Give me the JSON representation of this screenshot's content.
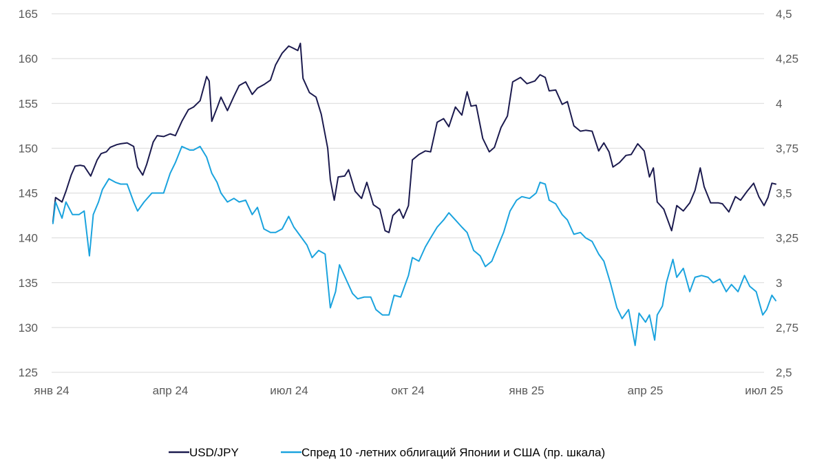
{
  "chart_data": {
    "type": "line",
    "title": "",
    "xlabel": "",
    "ylabel": "",
    "x_ticks": [
      "янв 24",
      "апр 24",
      "июл 24",
      "окт 24",
      "янв 25",
      "апр 25",
      "июл 25"
    ],
    "x_range": [
      "янв 24",
      "июл 25"
    ],
    "left_axis": {
      "ylim": [
        125,
        165
      ],
      "ticks": [
        "125",
        "130",
        "135",
        "140",
        "145",
        "150",
        "155",
        "160",
        "165"
      ]
    },
    "right_axis": {
      "ylim": [
        2.5,
        4.5
      ],
      "ticks": [
        "2,5",
        "2,75",
        "3",
        "3,25",
        "3,5",
        "3,75",
        "4",
        "4,25",
        "4,5"
      ]
    },
    "grid": true,
    "legend_position": "bottom",
    "series": [
      {
        "name": "USD/JPY",
        "axis": "left",
        "color": "#1b1a4e",
        "points": [
          [
            "2024-01-02",
            141.8
          ],
          [
            "2024-01-04",
            144.5
          ],
          [
            "2024-01-09",
            144.0
          ],
          [
            "2024-01-12",
            145.2
          ],
          [
            "2024-01-16",
            147.0
          ],
          [
            "2024-01-19",
            148.0
          ],
          [
            "2024-01-23",
            148.1
          ],
          [
            "2024-01-26",
            148.0
          ],
          [
            "2024-01-31",
            146.9
          ],
          [
            "2024-02-05",
            148.7
          ],
          [
            "2024-02-08",
            149.4
          ],
          [
            "2024-02-12",
            149.6
          ],
          [
            "2024-02-15",
            150.1
          ],
          [
            "2024-02-20",
            150.4
          ],
          [
            "2024-02-23",
            150.5
          ],
          [
            "2024-02-28",
            150.6
          ],
          [
            "2024-03-04",
            150.2
          ],
          [
            "2024-03-07",
            147.9
          ],
          [
            "2024-03-11",
            147.0
          ],
          [
            "2024-03-14",
            148.2
          ],
          [
            "2024-03-19",
            150.7
          ],
          [
            "2024-03-22",
            151.4
          ],
          [
            "2024-03-27",
            151.3
          ],
          [
            "2024-04-01",
            151.6
          ],
          [
            "2024-04-05",
            151.4
          ],
          [
            "2024-04-10",
            153.0
          ],
          [
            "2024-04-15",
            154.3
          ],
          [
            "2024-04-19",
            154.6
          ],
          [
            "2024-04-24",
            155.3
          ],
          [
            "2024-04-29",
            158.0
          ],
          [
            "2024-05-01",
            157.5
          ],
          [
            "2024-05-03",
            153.0
          ],
          [
            "2024-05-07",
            154.5
          ],
          [
            "2024-05-10",
            155.7
          ],
          [
            "2024-05-15",
            154.2
          ],
          [
            "2024-05-20",
            155.8
          ],
          [
            "2024-05-24",
            157.0
          ],
          [
            "2024-05-29",
            157.4
          ],
          [
            "2024-06-03",
            156.0
          ],
          [
            "2024-06-07",
            156.7
          ],
          [
            "2024-06-12",
            157.1
          ],
          [
            "2024-06-17",
            157.6
          ],
          [
            "2024-06-21",
            159.3
          ],
          [
            "2024-06-26",
            160.6
          ],
          [
            "2024-07-01",
            161.4
          ],
          [
            "2024-07-04",
            161.2
          ],
          [
            "2024-07-08",
            160.9
          ],
          [
            "2024-07-10",
            161.7
          ],
          [
            "2024-07-12",
            157.8
          ],
          [
            "2024-07-17",
            156.2
          ],
          [
            "2024-07-22",
            155.7
          ],
          [
            "2024-07-26",
            153.8
          ],
          [
            "2024-07-31",
            150.0
          ],
          [
            "2024-08-02",
            146.5
          ],
          [
            "2024-08-05",
            144.2
          ],
          [
            "2024-08-08",
            146.8
          ],
          [
            "2024-08-13",
            146.9
          ],
          [
            "2024-08-16",
            147.6
          ],
          [
            "2024-08-21",
            145.2
          ],
          [
            "2024-08-26",
            144.4
          ],
          [
            "2024-08-30",
            146.2
          ],
          [
            "2024-09-04",
            143.7
          ],
          [
            "2024-09-09",
            143.2
          ],
          [
            "2024-09-13",
            140.8
          ],
          [
            "2024-09-16",
            140.6
          ],
          [
            "2024-09-19",
            142.5
          ],
          [
            "2024-09-24",
            143.2
          ],
          [
            "2024-09-27",
            142.2
          ],
          [
            "2024-10-01",
            143.6
          ],
          [
            "2024-10-04",
            148.7
          ],
          [
            "2024-10-09",
            149.3
          ],
          [
            "2024-10-14",
            149.7
          ],
          [
            "2024-10-18",
            149.6
          ],
          [
            "2024-10-23",
            152.9
          ],
          [
            "2024-10-28",
            153.3
          ],
          [
            "2024-11-01",
            152.4
          ],
          [
            "2024-11-06",
            154.6
          ],
          [
            "2024-11-11",
            153.7
          ],
          [
            "2024-11-15",
            156.3
          ],
          [
            "2024-11-18",
            154.7
          ],
          [
            "2024-11-22",
            154.8
          ],
          [
            "2024-11-27",
            151.1
          ],
          [
            "2024-12-02",
            149.6
          ],
          [
            "2024-12-06",
            150.1
          ],
          [
            "2024-12-11",
            152.3
          ],
          [
            "2024-12-16",
            153.6
          ],
          [
            "2024-12-20",
            157.4
          ],
          [
            "2024-12-26",
            157.9
          ],
          [
            "2024-12-31",
            157.2
          ],
          [
            "2025-01-06",
            157.5
          ],
          [
            "2025-01-10",
            158.2
          ],
          [
            "2025-01-14",
            157.9
          ],
          [
            "2025-01-17",
            156.4
          ],
          [
            "2025-01-22",
            156.5
          ],
          [
            "2025-01-27",
            154.9
          ],
          [
            "2025-01-31",
            155.2
          ],
          [
            "2025-02-05",
            152.5
          ],
          [
            "2025-02-10",
            151.9
          ],
          [
            "2025-02-14",
            152.0
          ],
          [
            "2025-02-19",
            151.9
          ],
          [
            "2025-02-24",
            149.7
          ],
          [
            "2025-02-28",
            150.6
          ],
          [
            "2025-03-04",
            149.6
          ],
          [
            "2025-03-07",
            147.9
          ],
          [
            "2025-03-12",
            148.4
          ],
          [
            "2025-03-17",
            149.2
          ],
          [
            "2025-03-21",
            149.3
          ],
          [
            "2025-03-26",
            150.5
          ],
          [
            "2025-03-31",
            149.7
          ],
          [
            "2025-04-04",
            146.8
          ],
          [
            "2025-04-07",
            147.8
          ],
          [
            "2025-04-10",
            144.0
          ],
          [
            "2025-04-15",
            143.2
          ],
          [
            "2025-04-21",
            140.8
          ],
          [
            "2025-04-25",
            143.6
          ],
          [
            "2025-04-30",
            143.0
          ],
          [
            "2025-05-05",
            143.9
          ],
          [
            "2025-05-09",
            145.3
          ],
          [
            "2025-05-13",
            147.8
          ],
          [
            "2025-05-16",
            145.7
          ],
          [
            "2025-05-21",
            143.9
          ],
          [
            "2025-05-27",
            143.9
          ],
          [
            "2025-05-30",
            143.8
          ],
          [
            "2025-06-04",
            142.9
          ],
          [
            "2025-06-09",
            144.6
          ],
          [
            "2025-06-13",
            144.2
          ],
          [
            "2025-06-18",
            145.2
          ],
          [
            "2025-06-23",
            146.1
          ],
          [
            "2025-06-27",
            144.6
          ],
          [
            "2025-07-01",
            143.6
          ],
          [
            "2025-07-04",
            144.5
          ],
          [
            "2025-07-07",
            146.1
          ],
          [
            "2025-07-10",
            146.0
          ]
        ]
      },
      {
        "name": "Спред 10 -летних облигаций Японии и США (пр. шкала)",
        "axis": "right",
        "color": "#1aa3de",
        "points": [
          [
            "2024-01-02",
            3.33
          ],
          [
            "2024-01-04",
            3.45
          ],
          [
            "2024-01-09",
            3.36
          ],
          [
            "2024-01-12",
            3.45
          ],
          [
            "2024-01-17",
            3.38
          ],
          [
            "2024-01-22",
            3.38
          ],
          [
            "2024-01-26",
            3.4
          ],
          [
            "2024-01-30",
            3.15
          ],
          [
            "2024-02-02",
            3.38
          ],
          [
            "2024-02-06",
            3.45
          ],
          [
            "2024-02-09",
            3.52
          ],
          [
            "2024-02-14",
            3.58
          ],
          [
            "2024-02-19",
            3.56
          ],
          [
            "2024-02-23",
            3.55
          ],
          [
            "2024-02-28",
            3.55
          ],
          [
            "2024-03-04",
            3.45
          ],
          [
            "2024-03-07",
            3.4
          ],
          [
            "2024-03-12",
            3.45
          ],
          [
            "2024-03-18",
            3.5
          ],
          [
            "2024-03-22",
            3.5
          ],
          [
            "2024-03-27",
            3.5
          ],
          [
            "2024-04-01",
            3.61
          ],
          [
            "2024-04-05",
            3.67
          ],
          [
            "2024-04-10",
            3.76
          ],
          [
            "2024-04-16",
            3.74
          ],
          [
            "2024-04-19",
            3.74
          ],
          [
            "2024-04-24",
            3.76
          ],
          [
            "2024-04-29",
            3.7
          ],
          [
            "2024-05-03",
            3.61
          ],
          [
            "2024-05-07",
            3.56
          ],
          [
            "2024-05-10",
            3.5
          ],
          [
            "2024-05-15",
            3.45
          ],
          [
            "2024-05-20",
            3.47
          ],
          [
            "2024-05-24",
            3.45
          ],
          [
            "2024-05-29",
            3.46
          ],
          [
            "2024-06-03",
            3.38
          ],
          [
            "2024-06-07",
            3.42
          ],
          [
            "2024-06-12",
            3.3
          ],
          [
            "2024-06-17",
            3.28
          ],
          [
            "2024-06-21",
            3.28
          ],
          [
            "2024-06-26",
            3.3
          ],
          [
            "2024-07-01",
            3.37
          ],
          [
            "2024-07-05",
            3.31
          ],
          [
            "2024-07-10",
            3.26
          ],
          [
            "2024-07-15",
            3.21
          ],
          [
            "2024-07-19",
            3.14
          ],
          [
            "2024-07-24",
            3.18
          ],
          [
            "2024-07-29",
            3.16
          ],
          [
            "2024-08-02",
            2.86
          ],
          [
            "2024-08-06",
            2.95
          ],
          [
            "2024-08-09",
            3.1
          ],
          [
            "2024-08-14",
            3.02
          ],
          [
            "2024-08-19",
            2.94
          ],
          [
            "2024-08-23",
            2.91
          ],
          [
            "2024-08-28",
            2.92
          ],
          [
            "2024-09-02",
            2.92
          ],
          [
            "2024-09-06",
            2.85
          ],
          [
            "2024-09-11",
            2.82
          ],
          [
            "2024-09-16",
            2.82
          ],
          [
            "2024-09-20",
            2.93
          ],
          [
            "2024-09-25",
            2.92
          ],
          [
            "2024-10-01",
            3.04
          ],
          [
            "2024-10-04",
            3.14
          ],
          [
            "2024-10-09",
            3.12
          ],
          [
            "2024-10-14",
            3.2
          ],
          [
            "2024-10-18",
            3.25
          ],
          [
            "2024-10-23",
            3.31
          ],
          [
            "2024-10-28",
            3.35
          ],
          [
            "2024-11-01",
            3.39
          ],
          [
            "2024-11-06",
            3.35
          ],
          [
            "2024-11-11",
            3.31
          ],
          [
            "2024-11-15",
            3.28
          ],
          [
            "2024-11-20",
            3.18
          ],
          [
            "2024-11-25",
            3.15
          ],
          [
            "2024-11-29",
            3.09
          ],
          [
            "2024-12-04",
            3.12
          ],
          [
            "2024-12-09",
            3.21
          ],
          [
            "2024-12-13",
            3.28
          ],
          [
            "2024-12-18",
            3.4
          ],
          [
            "2024-12-23",
            3.46
          ],
          [
            "2024-12-27",
            3.48
          ],
          [
            "2025-01-02",
            3.47
          ],
          [
            "2025-01-07",
            3.5
          ],
          [
            "2025-01-10",
            3.56
          ],
          [
            "2025-01-14",
            3.55
          ],
          [
            "2025-01-17",
            3.46
          ],
          [
            "2025-01-22",
            3.44
          ],
          [
            "2025-01-27",
            3.38
          ],
          [
            "2025-01-31",
            3.35
          ],
          [
            "2025-02-05",
            3.27
          ],
          [
            "2025-02-10",
            3.28
          ],
          [
            "2025-02-14",
            3.25
          ],
          [
            "2025-02-19",
            3.23
          ],
          [
            "2025-02-24",
            3.16
          ],
          [
            "2025-02-28",
            3.12
          ],
          [
            "2025-03-05",
            3.0
          ],
          [
            "2025-03-10",
            2.86
          ],
          [
            "2025-03-14",
            2.8
          ],
          [
            "2025-03-19",
            2.85
          ],
          [
            "2025-03-24",
            2.65
          ],
          [
            "2025-03-27",
            2.83
          ],
          [
            "2025-04-01",
            2.78
          ],
          [
            "2025-04-04",
            2.82
          ],
          [
            "2025-04-08",
            2.68
          ],
          [
            "2025-04-10",
            2.82
          ],
          [
            "2025-04-14",
            2.87
          ],
          [
            "2025-04-17",
            3.0
          ],
          [
            "2025-04-22",
            3.13
          ],
          [
            "2025-04-25",
            3.03
          ],
          [
            "2025-04-30",
            3.08
          ],
          [
            "2025-05-05",
            2.95
          ],
          [
            "2025-05-09",
            3.03
          ],
          [
            "2025-05-14",
            3.04
          ],
          [
            "2025-05-19",
            3.03
          ],
          [
            "2025-05-23",
            3.0
          ],
          [
            "2025-05-28",
            3.02
          ],
          [
            "2025-06-02",
            2.95
          ],
          [
            "2025-06-06",
            2.99
          ],
          [
            "2025-06-11",
            2.95
          ],
          [
            "2025-06-16",
            3.04
          ],
          [
            "2025-06-20",
            2.98
          ],
          [
            "2025-06-25",
            2.95
          ],
          [
            "2025-06-30",
            2.82
          ],
          [
            "2025-07-03",
            2.85
          ],
          [
            "2025-07-07",
            2.93
          ],
          [
            "2025-07-10",
            2.9
          ]
        ]
      }
    ]
  }
}
